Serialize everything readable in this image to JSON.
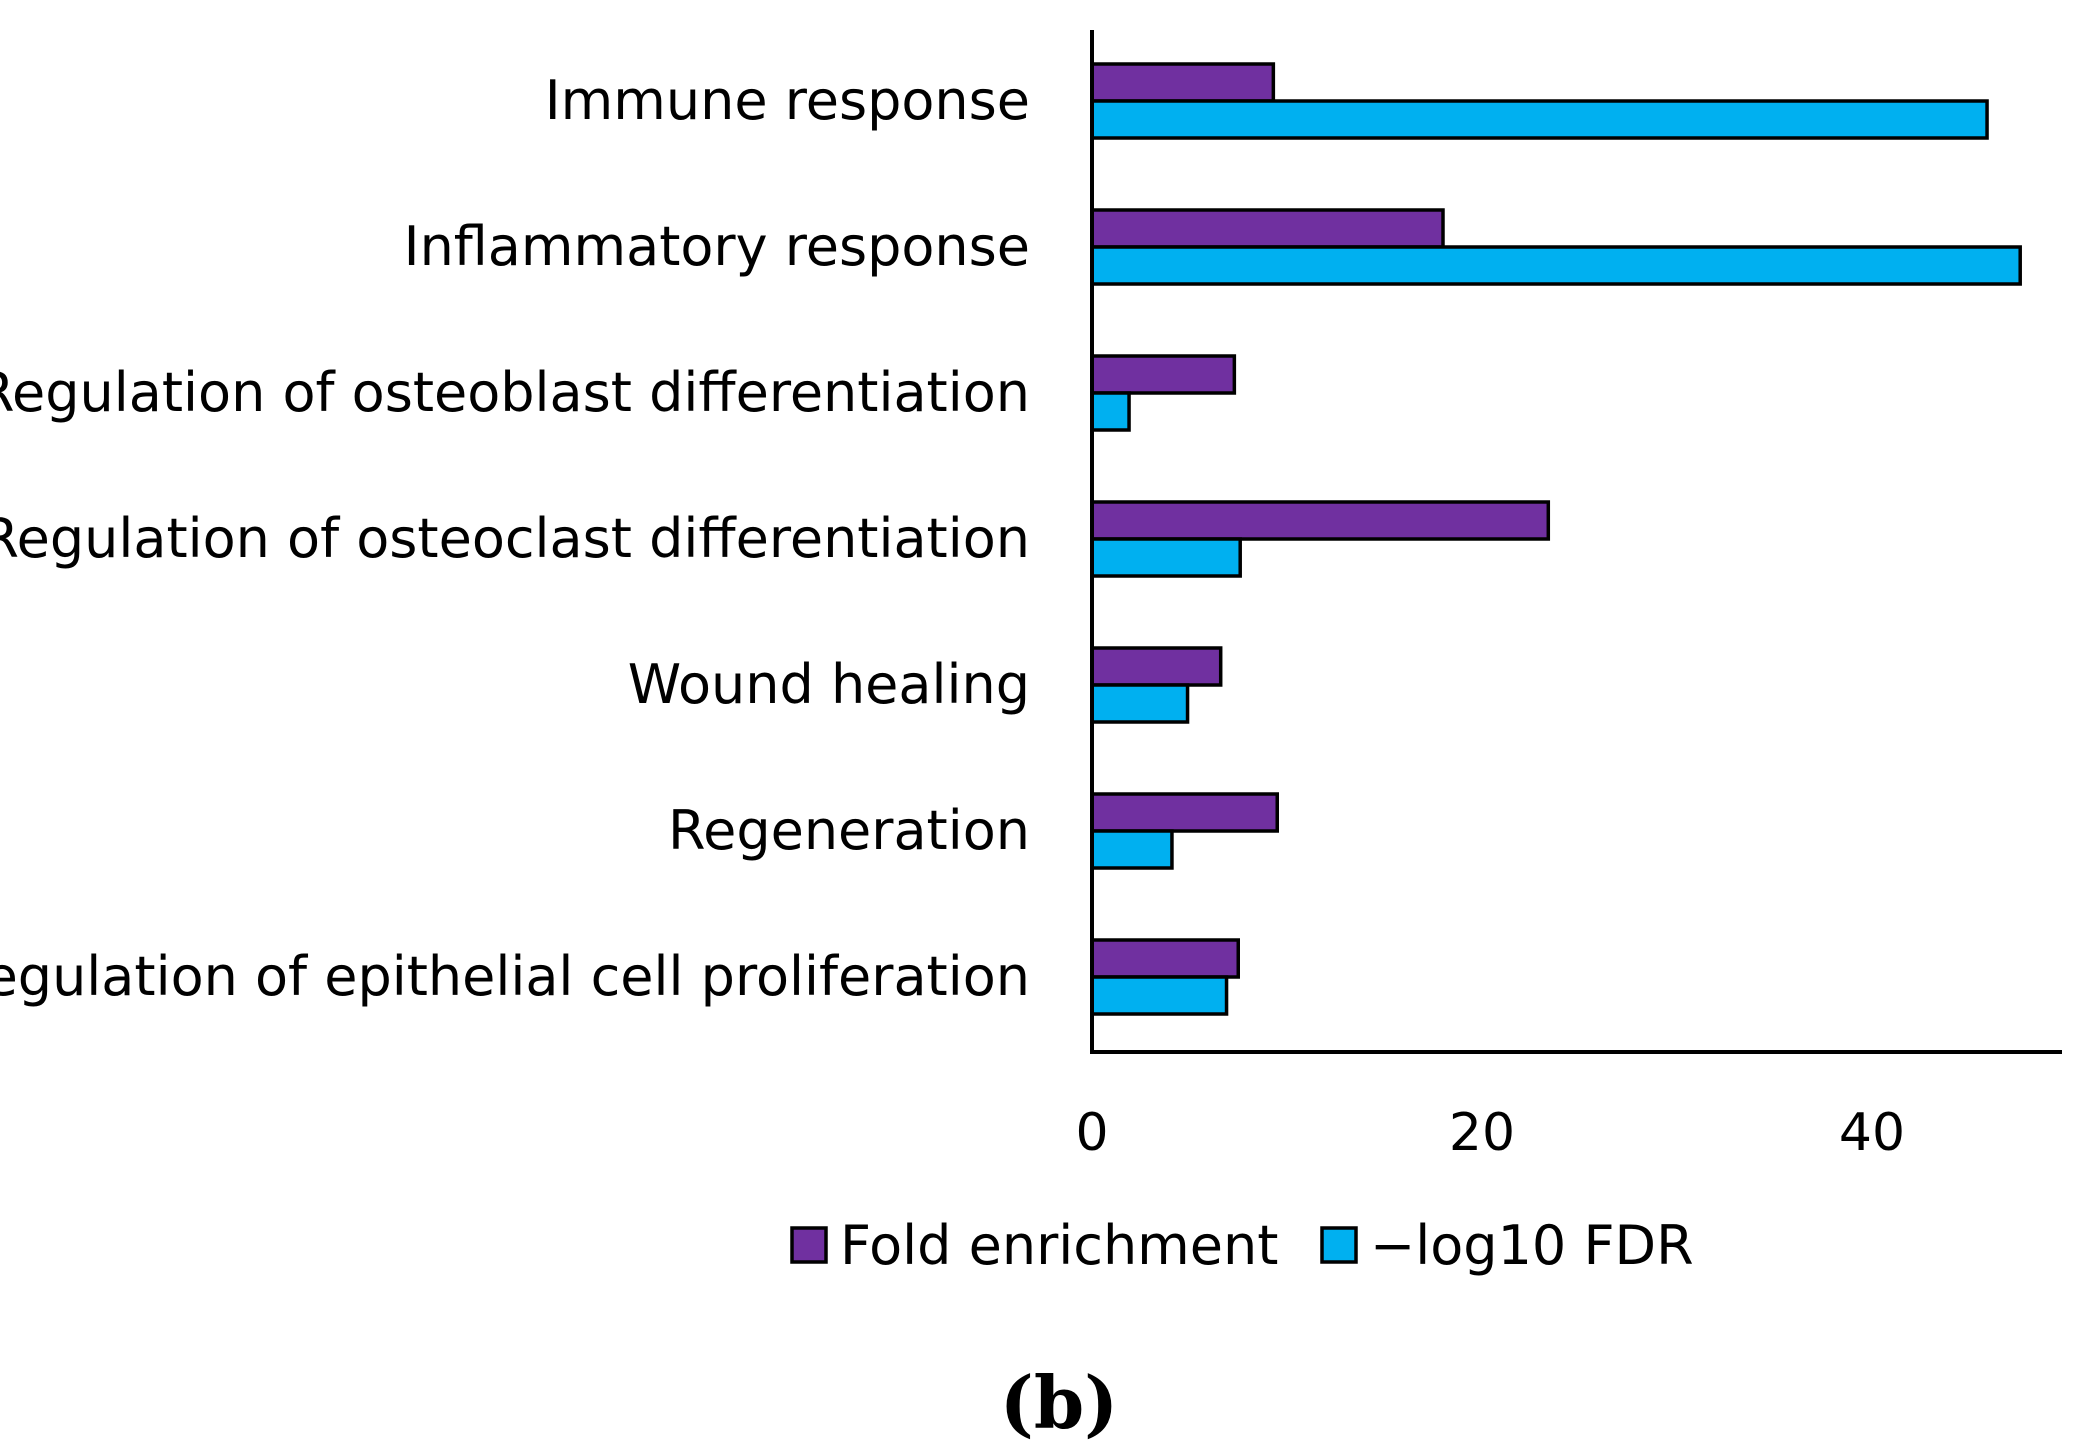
{
  "chart_data": {
    "type": "bar",
    "orientation": "horizontal",
    "categories": [
      "Immune response",
      "Inflammatory response",
      "Regulation of osteoblast differentiation",
      "Regulation of osteoclast differentiation",
      "Wound healing",
      "Regeneration",
      "Regulation of epithelial cell proliferation"
    ],
    "series": [
      {
        "name": "Fold enrichment",
        "color": "#7030A0",
        "values": [
          9.3,
          18.0,
          7.3,
          23.4,
          6.6,
          9.5,
          7.5
        ]
      },
      {
        "name": "−log10 FDR",
        "color": "#00B0F0",
        "values": [
          45.9,
          47.6,
          1.9,
          7.6,
          4.9,
          4.1,
          6.9
        ]
      }
    ],
    "xlim": [
      0,
      50
    ],
    "xticks": [
      "0",
      "20",
      "40"
    ],
    "grid": false,
    "legend_position": "bottom",
    "panel_label": "(b)"
  }
}
